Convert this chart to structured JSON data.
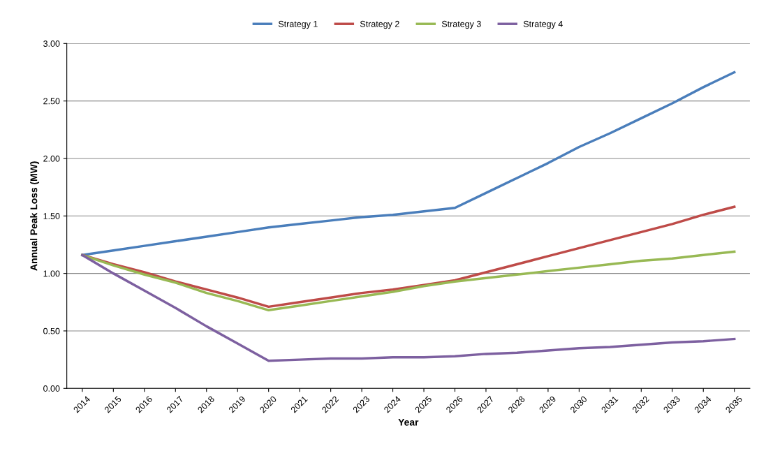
{
  "chart_data": {
    "type": "line",
    "xlabel": "Year",
    "ylabel": "Annual Peak Loss (MW)",
    "categories": [
      "2014",
      "2015",
      "2016",
      "2017",
      "2018",
      "2019",
      "2020",
      "2021",
      "2022",
      "2023",
      "2024",
      "2025",
      "2026",
      "2027",
      "2028",
      "2029",
      "2030",
      "2031",
      "2032",
      "2033",
      "2034",
      "2035"
    ],
    "series": [
      {
        "name": "Strategy 1",
        "color": "#4a7ebb",
        "values": [
          1.16,
          1.2,
          1.24,
          1.28,
          1.32,
          1.36,
          1.4,
          1.43,
          1.46,
          1.49,
          1.51,
          1.54,
          1.57,
          1.7,
          1.83,
          1.96,
          2.1,
          2.22,
          2.35,
          2.48,
          2.62,
          2.75
        ]
      },
      {
        "name": "Strategy 2",
        "color": "#be4b48",
        "values": [
          1.16,
          1.08,
          1.01,
          0.93,
          0.86,
          0.79,
          0.71,
          0.75,
          0.79,
          0.83,
          0.86,
          0.9,
          0.94,
          1.01,
          1.08,
          1.15,
          1.22,
          1.29,
          1.36,
          1.43,
          1.51,
          1.58
        ]
      },
      {
        "name": "Strategy 3",
        "color": "#98b954",
        "values": [
          1.16,
          1.07,
          0.99,
          0.92,
          0.83,
          0.76,
          0.68,
          0.72,
          0.76,
          0.8,
          0.84,
          0.89,
          0.93,
          0.96,
          0.99,
          1.02,
          1.05,
          1.08,
          1.11,
          1.13,
          1.16,
          1.19
        ]
      },
      {
        "name": "Strategy 4",
        "color": "#7d60a0",
        "values": [
          1.16,
          1.0,
          0.85,
          0.7,
          0.54,
          0.39,
          0.24,
          0.25,
          0.26,
          0.26,
          0.27,
          0.27,
          0.28,
          0.3,
          0.31,
          0.33,
          0.35,
          0.36,
          0.38,
          0.4,
          0.41,
          0.43
        ]
      }
    ],
    "ylim": [
      0,
      3
    ],
    "yticks": [
      {
        "value": 0,
        "label": "0.00"
      },
      {
        "value": 0.5,
        "label": "0.50"
      },
      {
        "value": 1,
        "label": "1.00"
      },
      {
        "value": 1.5,
        "label": "1.50"
      },
      {
        "value": 2,
        "label": "2.00"
      },
      {
        "value": 2.5,
        "label": "2.50"
      },
      {
        "value": 3,
        "label": "3.00"
      }
    ],
    "grid": "y",
    "legend": "top",
    "marker": "none",
    "line_style": "solid"
  }
}
